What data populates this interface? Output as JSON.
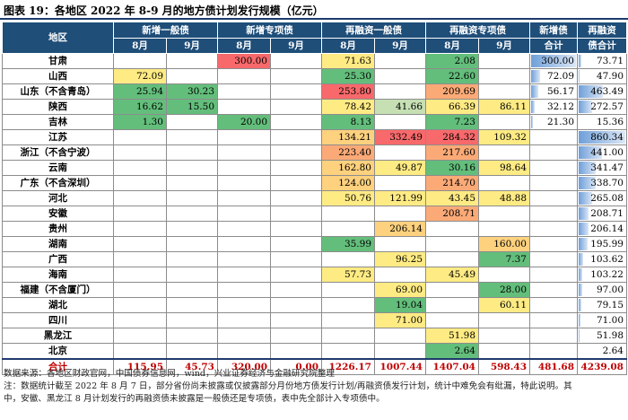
{
  "title": "图表 19：各地区 2022 年 8-9 月的地方债计划发行规模（亿元）",
  "headers": {
    "region": "地区",
    "groups": [
      "新增一般债",
      "新增专项债",
      "再融资一般债",
      "再融资专项债"
    ],
    "months": [
      "8月",
      "9月"
    ],
    "xinzeng_total": [
      "新增债",
      "合计"
    ],
    "zairongzi_total": [
      "再融资",
      "债合计"
    ]
  },
  "colors": {
    "header_bg": "#1f4e79",
    "green": "#63be7b",
    "light_green": "#c6e0b4",
    "yellow": "#ffeb84",
    "orange": "#fdd17e",
    "red": "#f8696b",
    "light_red": "#fbaa77",
    "total_text": "#c00000",
    "bar": "#6f9fd8"
  },
  "rows": [
    {
      "region": "甘肃",
      "v": [
        "",
        "",
        "300.00",
        "",
        "71.63",
        "",
        "2.08",
        "",
        "300.00",
        "73.71"
      ],
      "c": [
        "",
        "",
        "red",
        "",
        "yellow",
        "",
        "green",
        "",
        "",
        ""
      ]
    },
    {
      "region": "山西",
      "v": [
        "72.09",
        "",
        "",
        "",
        "25.30",
        "",
        "22.60",
        "",
        "72.09",
        "47.90"
      ],
      "c": [
        "yellow",
        "",
        "",
        "",
        "green",
        "",
        "green",
        "",
        "",
        ""
      ]
    },
    {
      "region": "山东（不含青岛）",
      "v": [
        "25.94",
        "30.23",
        "",
        "",
        "253.80",
        "",
        "209.69",
        "",
        "56.17",
        "463.49"
      ],
      "c": [
        "green",
        "green",
        "",
        "",
        "red",
        "",
        "light_red",
        "",
        "",
        ""
      ]
    },
    {
      "region": "陕西",
      "v": [
        "16.62",
        "15.50",
        "",
        "",
        "78.42",
        "41.66",
        "66.39",
        "86.11",
        "32.12",
        "272.57"
      ],
      "c": [
        "green",
        "green",
        "",
        "",
        "yellow",
        "light_green",
        "yellow",
        "yellow",
        "",
        ""
      ]
    },
    {
      "region": "吉林",
      "v": [
        "1.30",
        "",
        "20.00",
        "",
        "8.13",
        "",
        "7.23",
        "",
        "21.30",
        "15.36"
      ],
      "c": [
        "green",
        "",
        "green",
        "",
        "green",
        "",
        "green",
        "",
        "",
        ""
      ]
    },
    {
      "region": "江苏",
      "v": [
        "",
        "",
        "",
        "",
        "134.21",
        "332.49",
        "284.32",
        "109.32",
        "",
        "860.34"
      ],
      "c": [
        "",
        "",
        "",
        "",
        "orange",
        "red",
        "red",
        "yellow",
        "",
        ""
      ]
    },
    {
      "region": "浙江（不含宁波）",
      "v": [
        "",
        "",
        "",
        "",
        "223.40",
        "",
        "217.60",
        "",
        "",
        "441.00"
      ],
      "c": [
        "",
        "",
        "",
        "",
        "light_red",
        "",
        "light_red",
        "",
        "",
        ""
      ]
    },
    {
      "region": "云南",
      "v": [
        "",
        "",
        "",
        "",
        "162.80",
        "49.87",
        "30.16",
        "98.64",
        "",
        "341.47"
      ],
      "c": [
        "",
        "",
        "",
        "",
        "orange",
        "yellow",
        "green",
        "yellow",
        "",
        ""
      ]
    },
    {
      "region": "广东（不含深圳）",
      "v": [
        "",
        "",
        "",
        "",
        "124.00",
        "",
        "214.70",
        "",
        "",
        "338.70"
      ],
      "c": [
        "",
        "",
        "",
        "",
        "orange",
        "",
        "light_red",
        "",
        "",
        ""
      ]
    },
    {
      "region": "河北",
      "v": [
        "",
        "",
        "",
        "",
        "50.76",
        "121.99",
        "43.45",
        "48.88",
        "",
        "265.08"
      ],
      "c": [
        "",
        "",
        "",
        "",
        "yellow",
        "yellow",
        "yellow",
        "yellow",
        "",
        ""
      ]
    },
    {
      "region": "安徽",
      "v": [
        "",
        "",
        "",
        "",
        "",
        "",
        "208.71",
        "",
        "",
        "208.71"
      ],
      "c": [
        "",
        "",
        "",
        "",
        "",
        "",
        "light_red",
        "",
        "",
        ""
      ]
    },
    {
      "region": "贵州",
      "v": [
        "",
        "",
        "",
        "",
        "",
        "206.14",
        "",
        "",
        "",
        "206.14"
      ],
      "c": [
        "",
        "",
        "",
        "",
        "",
        "orange",
        "",
        "",
        "",
        ""
      ]
    },
    {
      "region": "湖南",
      "v": [
        "",
        "",
        "",
        "",
        "35.99",
        "",
        "",
        "160.00",
        "",
        "195.99"
      ],
      "c": [
        "",
        "",
        "",
        "",
        "green",
        "",
        "",
        "orange",
        "",
        ""
      ]
    },
    {
      "region": "广西",
      "v": [
        "",
        "",
        "",
        "",
        "",
        "96.25",
        "",
        "7.37",
        "",
        "103.62"
      ],
      "c": [
        "",
        "",
        "",
        "",
        "",
        "yellow",
        "",
        "green",
        "",
        ""
      ]
    },
    {
      "region": "海南",
      "v": [
        "",
        "",
        "",
        "",
        "57.73",
        "",
        "45.49",
        "",
        "",
        "103.22"
      ],
      "c": [
        "",
        "",
        "",
        "",
        "yellow",
        "",
        "yellow",
        "",
        "",
        ""
      ]
    },
    {
      "region": "福建（不含厦门）",
      "v": [
        "",
        "",
        "",
        "",
        "",
        "69.00",
        "",
        "28.00",
        "",
        "97.00"
      ],
      "c": [
        "",
        "",
        "",
        "",
        "",
        "yellow",
        "",
        "green",
        "",
        ""
      ]
    },
    {
      "region": "湖北",
      "v": [
        "",
        "",
        "",
        "",
        "",
        "19.04",
        "",
        "60.11",
        "",
        "79.15"
      ],
      "c": [
        "",
        "",
        "",
        "",
        "",
        "green",
        "",
        "yellow",
        "",
        ""
      ]
    },
    {
      "region": "四川",
      "v": [
        "",
        "",
        "",
        "",
        "",
        "71.00",
        "",
        "",
        "",
        "71.00"
      ],
      "c": [
        "",
        "",
        "",
        "",
        "",
        "yellow",
        "",
        "",
        "",
        ""
      ]
    },
    {
      "region": "黑龙江",
      "v": [
        "",
        "",
        "",
        "",
        "",
        "",
        "51.98",
        "",
        "",
        "51.98"
      ],
      "c": [
        "",
        "",
        "",
        "",
        "",
        "",
        "yellow",
        "",
        "",
        ""
      ]
    },
    {
      "region": "北京",
      "v": [
        "",
        "",
        "",
        "",
        "",
        "",
        "2.64",
        "",
        "",
        "2.64"
      ],
      "c": [
        "",
        "",
        "",
        "",
        "",
        "",
        "green",
        "",
        "",
        ""
      ]
    }
  ],
  "total": {
    "region": "合计",
    "v": [
      "115.95",
      "45.73",
      "320.00",
      "0.00",
      "1226.17",
      "1007.44",
      "1407.04",
      "598.43",
      "481.68",
      "4239.08"
    ]
  },
  "notes": [
    "数据来源：各地区财政官网，中国债券信息网，wind，兴业证券经济与金融研究院整理",
    "注：数据统计截至 2022 年 8 月 7 日，部分省份尚未披露或仅披露部分月份地方债发行计划/再融资债发行计划，统计中难免会有纰漏，特此说明。其",
    "中，安徽、黑龙江 8 月计划发行的再融资债未披露是一般债还是专项债，表中先全部计入专项债中。"
  ]
}
